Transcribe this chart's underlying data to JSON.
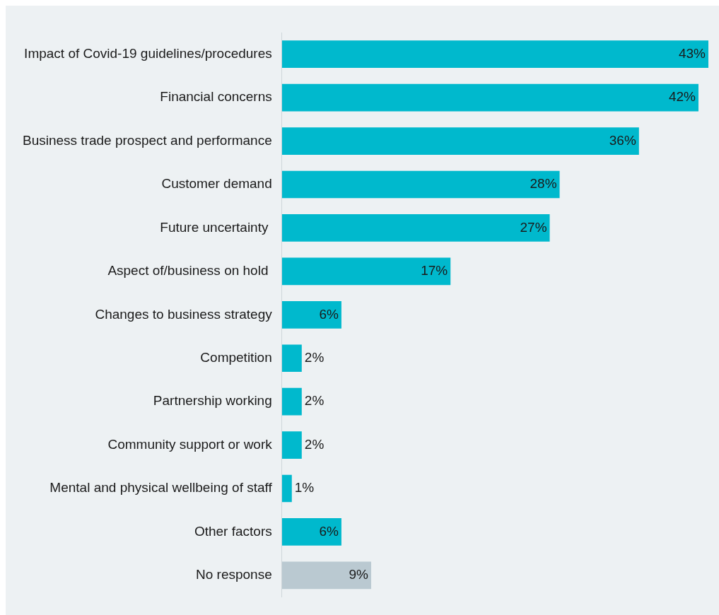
{
  "chart_data": {
    "type": "bar",
    "orientation": "horizontal",
    "categories": [
      "Impact of Covid-19 guidelines/procedures",
      "Financial concerns",
      "Business trade prospect and performance",
      "Customer demand",
      "Future uncertainty ",
      "Aspect of/business on hold ",
      "Changes to business strategy",
      "Competition",
      "Partnership working",
      "Community support or work",
      "Mental and physical wellbeing of staff",
      "Other factors",
      "No response"
    ],
    "values": [
      43,
      42,
      36,
      28,
      27,
      17,
      6,
      2,
      2,
      2,
      1,
      6,
      9
    ],
    "colors": [
      "#00b9cd",
      "#00b9cd",
      "#00b9cd",
      "#00b9cd",
      "#00b9cd",
      "#00b9cd",
      "#00b9cd",
      "#00b9cd",
      "#00b9cd",
      "#00b9cd",
      "#00b9cd",
      "#00b9cd",
      "#bac9d1"
    ],
    "value_labels": [
      "43%",
      "42%",
      "36%",
      "28%",
      "27%",
      "17%",
      "6%",
      "2%",
      "2%",
      "2%",
      "1%",
      "6%",
      "9%"
    ],
    "grid": false,
    "legend": false
  }
}
